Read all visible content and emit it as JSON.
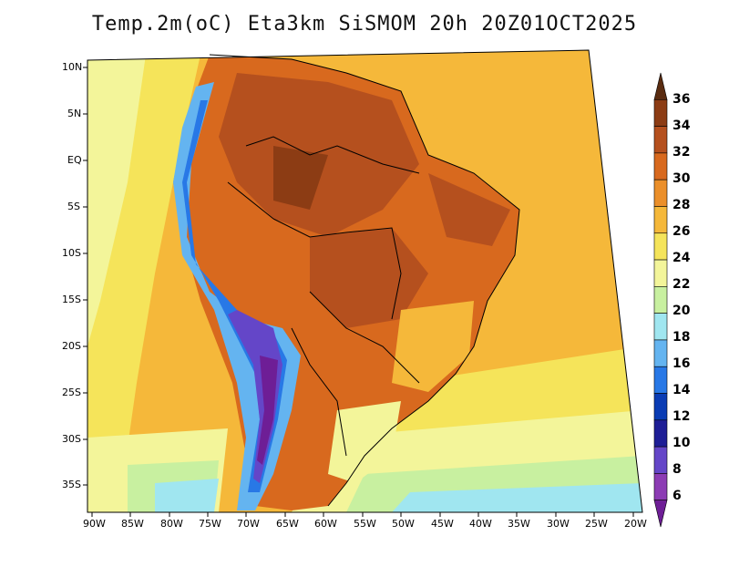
{
  "title": "Temp.2m(oC) Eta3km SiSMOM 20h 20Z01OCT2025",
  "lat_labels": [
    "10N",
    "5N",
    "EQ",
    "5S",
    "10S",
    "15S",
    "20S",
    "25S",
    "30S",
    "35S"
  ],
  "lon_labels": [
    "90W",
    "85W",
    "80W",
    "75W",
    "70W",
    "65W",
    "60W",
    "55W",
    "50W",
    "45W",
    "40W",
    "35W",
    "30W",
    "25W",
    "20W"
  ],
  "colorbar": {
    "labels": [
      "36",
      "34",
      "32",
      "30",
      "28",
      "26",
      "24",
      "22",
      "20",
      "18",
      "16",
      "14",
      "12",
      "10",
      "8",
      "6"
    ],
    "colors": [
      "#5a2c10",
      "#8c3c14",
      "#b5501e",
      "#d8691e",
      "#eb8f2a",
      "#f5b83a",
      "#f5e45a",
      "#f3f59a",
      "#c8f0a0",
      "#a0e6f0",
      "#64b4f0",
      "#2878e6",
      "#0a3cb4",
      "#1e1e96",
      "#6446c8",
      "#8c3cb4",
      "#6e1e96"
    ]
  }
}
